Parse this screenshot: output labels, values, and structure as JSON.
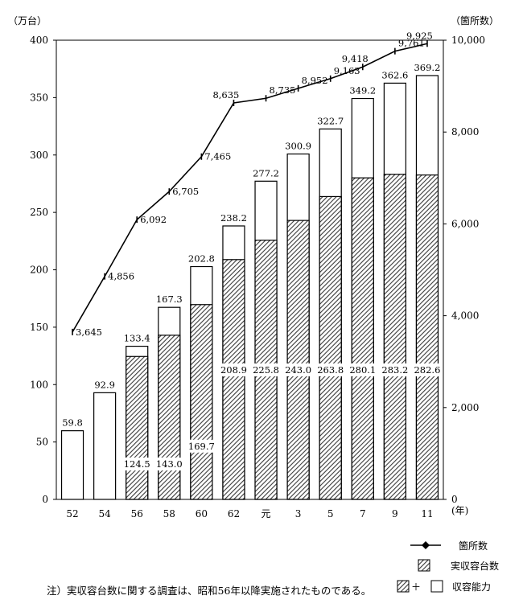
{
  "chart_data": {
    "type": "bar",
    "title": "",
    "left_axis_unit": "（万台）",
    "right_axis_unit": "（箇所数）",
    "x_unit": "(年)",
    "categories": [
      "52",
      "54",
      "56",
      "58",
      "60",
      "62",
      "元",
      "3",
      "5",
      "7",
      "9",
      "11"
    ],
    "ylim_left": [
      0,
      400
    ],
    "yticks_left": [
      0,
      50,
      100,
      150,
      200,
      250,
      300,
      350,
      400
    ],
    "ylim_right": [
      0,
      10000
    ],
    "yticks_right_labels": [
      "0",
      "2,000",
      "4,000",
      "6,000",
      "8,000",
      "10,000"
    ],
    "series": [
      {
        "name": "箇所数",
        "kind": "line",
        "axis": "right",
        "values": [
          3645,
          4856,
          6092,
          6705,
          7465,
          8635,
          8735,
          8952,
          9163,
          9418,
          9761,
          9925
        ],
        "labels": [
          "3,645",
          "4,856",
          "6,092",
          "6,705",
          "7,465",
          "8,635",
          "8,735",
          "8,952",
          "9,163",
          "9,418",
          "9,761",
          "9,925"
        ]
      },
      {
        "name": "実収容台数",
        "kind": "bar-hatched",
        "axis": "left",
        "values": [
          null,
          null,
          124.5,
          143.0,
          169.7,
          208.9,
          225.8,
          243.0,
          263.8,
          280.1,
          283.2,
          282.6
        ],
        "labels": [
          "",
          "",
          "124.5",
          "143.0",
          "169.7",
          "208.9",
          "225.8",
          "243.0",
          "263.8",
          "280.1",
          "283.2",
          "282.6"
        ]
      },
      {
        "name": "収容能力",
        "kind": "bar-outline-total",
        "axis": "left",
        "values": [
          59.8,
          92.9,
          133.4,
          167.3,
          202.8,
          238.2,
          277.2,
          300.9,
          322.7,
          349.2,
          362.6,
          369.2
        ],
        "labels": [
          "59.8",
          "92.9",
          "133.4",
          "167.3",
          "202.8",
          "238.2",
          "277.2",
          "300.9",
          "322.7",
          "349.2",
          "362.6",
          "369.2"
        ]
      }
    ],
    "legend": {
      "placement": "bottom-right",
      "items": [
        {
          "symbol": "line-marker",
          "label": "箇所数"
        },
        {
          "symbol": "hatched",
          "label": "実収容台数"
        },
        {
          "symbol": "hatched-plus-outline",
          "plus": "＋",
          "label": "収容能力"
        }
      ]
    },
    "note": "注）実収容台数に関する調査は、昭和56年以降実施されたものである。"
  }
}
